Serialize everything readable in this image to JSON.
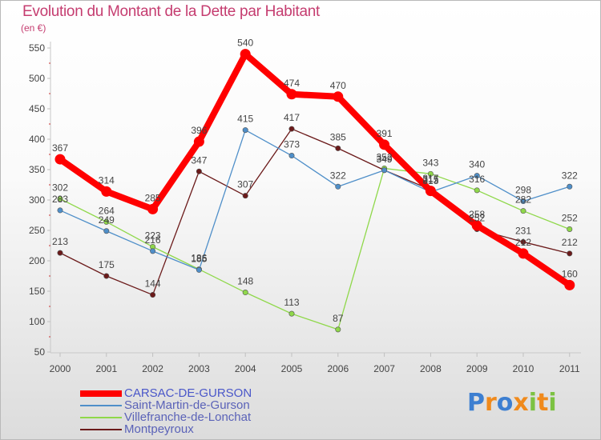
{
  "chart_data": {
    "type": "line",
    "title": "Evolution du Montant de la Dette par Habitant",
    "ylabel": "(en €)",
    "xlabel": "",
    "ylim": [
      50,
      550
    ],
    "yticks": [
      50,
      100,
      150,
      200,
      250,
      300,
      350,
      400,
      450,
      500,
      550
    ],
    "categories": [
      "2000",
      "2001",
      "2002",
      "2003",
      "2004",
      "2005",
      "2006",
      "2007",
      "2008",
      "2009",
      "2010",
      "2011"
    ],
    "series": [
      {
        "name": "CARSAC-DE-GURSON",
        "color": "#ff0000",
        "values": [
          367,
          314,
          285,
          396,
          540,
          474,
          470,
          391,
          315,
          258,
          212,
          160
        ]
      },
      {
        "name": "Saint-Martin-de-Gurson",
        "color": "#4f8fc9",
        "values": [
          283,
          249,
          216,
          185,
          415,
          373,
          322,
          349,
          313,
          340,
          298,
          322
        ]
      },
      {
        "name": "Villefranche-de-Lonchat",
        "color": "#8fd84a",
        "values": [
          302,
          264,
          223,
          186,
          148,
          113,
          87,
          352,
          343,
          316,
          282,
          252
        ]
      },
      {
        "name": "Montpeyroux",
        "color": "#6b1a1a",
        "values": [
          213,
          175,
          144,
          347,
          307,
          417,
          385,
          349,
          317,
          252,
          231,
          212
        ]
      }
    ],
    "grid": false,
    "legend_position": "bottom-left"
  },
  "logo": {
    "text": "Proxiti",
    "letters": [
      "P",
      "r",
      "o",
      "x",
      "i",
      "t",
      "i"
    ],
    "colors": [
      "#3d7fd1",
      "#f08a1c",
      "#3d7fd1",
      "#f08a1c",
      "#7cc242",
      "#f08a1c",
      "#7cc242"
    ]
  }
}
